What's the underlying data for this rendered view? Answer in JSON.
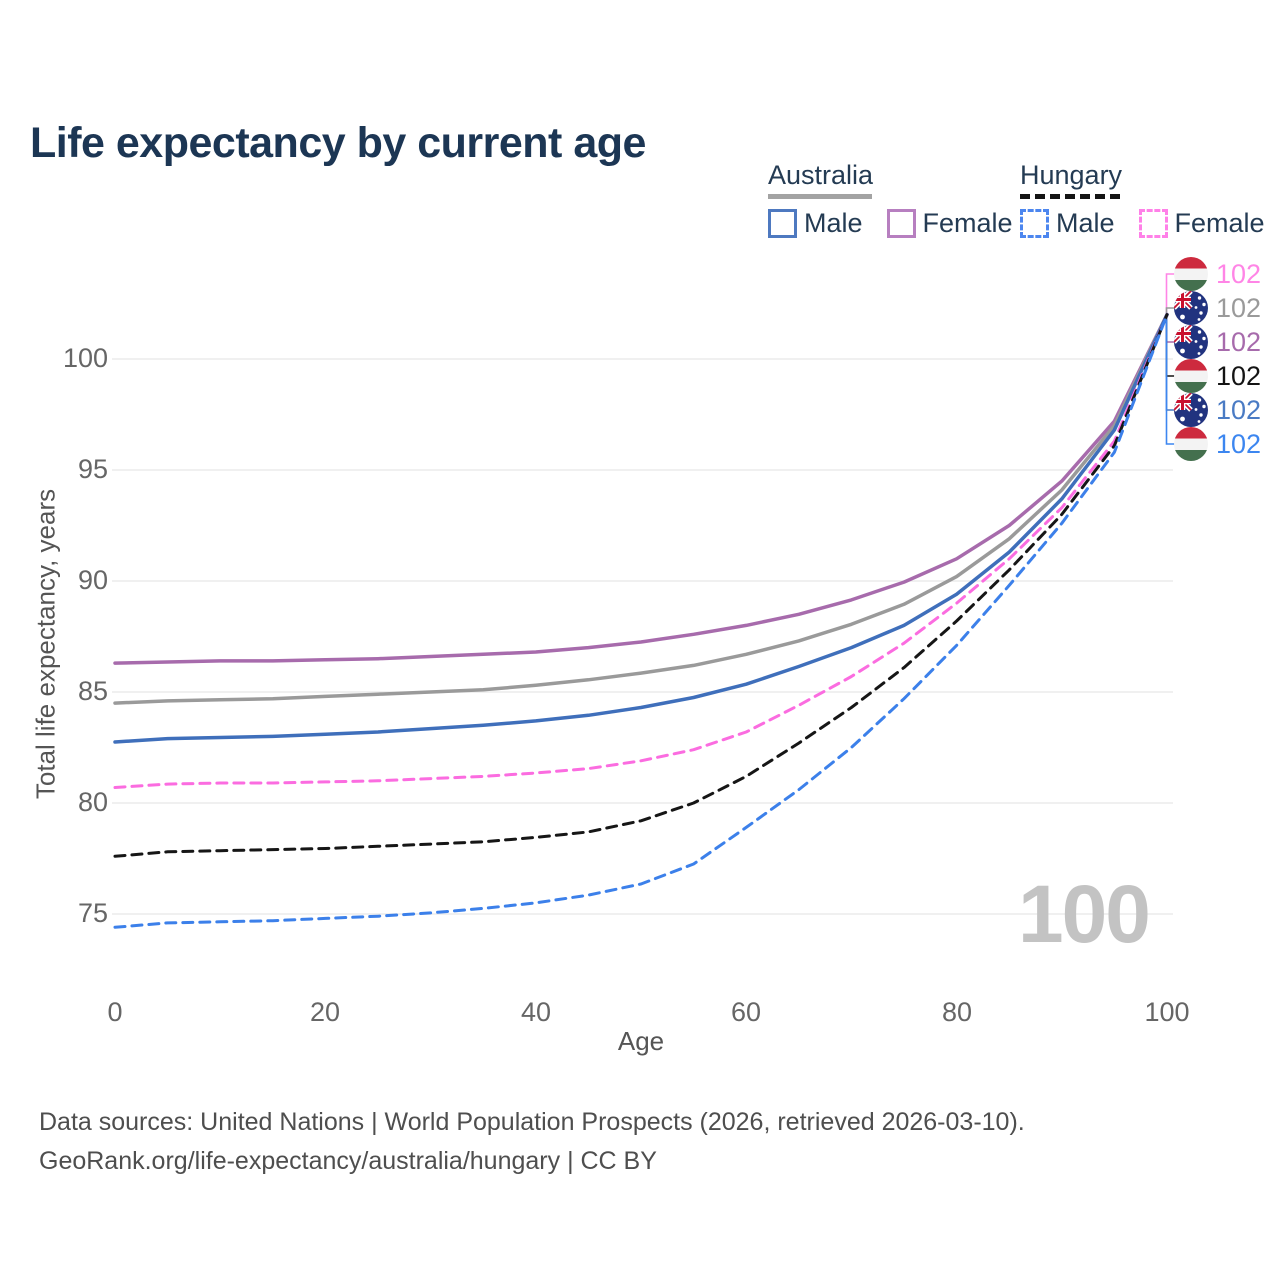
{
  "title": "Life expectancy by current age",
  "legend": {
    "groups": [
      {
        "label": "Australia",
        "underline_style": "solid",
        "underline_color": "#a3a3a3",
        "items": [
          {
            "label": "Male",
            "swatch_color": "#4e79c0",
            "swatch_style": "solid"
          },
          {
            "label": "Female",
            "swatch_color": "#b77fc0",
            "swatch_style": "solid"
          }
        ]
      },
      {
        "label": "Hungary",
        "underline_style": "dashed",
        "underline_color": "#141414",
        "items": [
          {
            "label": "Male",
            "swatch_color": "#4c86ef",
            "swatch_style": "dashed"
          },
          {
            "label": "Female",
            "swatch_color": "#ff80e8",
            "swatch_style": "dashed"
          }
        ]
      }
    ]
  },
  "chart_data": {
    "type": "line",
    "title": "Life expectancy by current age",
    "xlabel": "Age",
    "ylabel": "Total life expectancy, years",
    "x_ticks": [
      0,
      20,
      40,
      60,
      80,
      100
    ],
    "y_ticks": [
      75,
      80,
      85,
      90,
      95,
      100
    ],
    "xlim": [
      0,
      100
    ],
    "ylim": [
      73,
      103
    ],
    "grid": "horizontal",
    "grid_color": "#ebebeb",
    "legend_position": "top-right",
    "age_indicator": "100",
    "x": [
      0,
      5,
      10,
      15,
      20,
      25,
      30,
      35,
      40,
      45,
      50,
      55,
      60,
      65,
      70,
      75,
      80,
      85,
      90,
      95,
      100
    ],
    "series": [
      {
        "name": "Australia Female",
        "country": "Australia",
        "sex": "Female",
        "style": "solid",
        "color": "#a76bac",
        "values": [
          86.3,
          86.35,
          86.4,
          86.4,
          86.45,
          86.5,
          86.6,
          86.7,
          86.8,
          87.0,
          87.25,
          87.6,
          88.0,
          88.5,
          89.15,
          89.95,
          91.0,
          92.5,
          94.5,
          97.2,
          102
        ]
      },
      {
        "name": "Australia Both sexes",
        "country": "Australia",
        "sex": "Both",
        "style": "solid",
        "color": "#9a9a9a",
        "values": [
          84.5,
          84.6,
          84.65,
          84.7,
          84.8,
          84.9,
          85.0,
          85.1,
          85.3,
          85.55,
          85.85,
          86.2,
          86.7,
          87.3,
          88.05,
          88.95,
          90.2,
          91.9,
          94.1,
          97.0,
          102
        ]
      },
      {
        "name": "Australia Male",
        "country": "Australia",
        "sex": "Male",
        "style": "solid",
        "color": "#3f6fbb",
        "values": [
          82.75,
          82.9,
          82.95,
          83.0,
          83.1,
          83.2,
          83.35,
          83.5,
          83.7,
          83.95,
          84.3,
          84.75,
          85.35,
          86.15,
          87.0,
          88.0,
          89.4,
          91.3,
          93.7,
          96.8,
          102
        ]
      },
      {
        "name": "Hungary Female",
        "country": "Hungary",
        "sex": "Female",
        "style": "dashed",
        "color": "#fb6ce0",
        "values": [
          80.7,
          80.85,
          80.9,
          80.9,
          80.95,
          81.0,
          81.1,
          81.2,
          81.35,
          81.55,
          81.9,
          82.4,
          83.2,
          84.4,
          85.7,
          87.2,
          89.0,
          91.0,
          93.3,
          96.3,
          102
        ]
      },
      {
        "name": "Hungary Both sexes",
        "country": "Hungary",
        "sex": "Both",
        "style": "dashed",
        "color": "#161616",
        "values": [
          77.6,
          77.8,
          77.85,
          77.9,
          77.95,
          78.05,
          78.15,
          78.25,
          78.45,
          78.7,
          79.2,
          80.0,
          81.2,
          82.7,
          84.3,
          86.1,
          88.2,
          90.5,
          93.0,
          96.1,
          102
        ]
      },
      {
        "name": "Hungary Male",
        "country": "Hungary",
        "sex": "Male",
        "style": "dashed",
        "color": "#3c80ea",
        "values": [
          74.4,
          74.6,
          74.65,
          74.7,
          74.8,
          74.9,
          75.05,
          75.25,
          75.5,
          75.85,
          76.35,
          77.25,
          78.9,
          80.6,
          82.5,
          84.7,
          87.1,
          89.8,
          92.6,
          95.8,
          102
        ]
      }
    ],
    "endpoint_labels": [
      {
        "flag": "hu",
        "series": "Hungary Female",
        "value": "102",
        "color": "#ff85e6"
      },
      {
        "flag": "au",
        "series": "Australia Both sexes",
        "value": "102",
        "color": "#9a9a9a"
      },
      {
        "flag": "au",
        "series": "Australia Female",
        "value": "102",
        "color": "#a76bac"
      },
      {
        "flag": "hu",
        "series": "Hungary Both sexes",
        "value": "102",
        "color": "#141414"
      },
      {
        "flag": "au",
        "series": "Australia Male",
        "value": "102",
        "color": "#4a7bc4"
      },
      {
        "flag": "hu",
        "series": "Hungary Male",
        "value": "102",
        "color": "#3c86f0"
      }
    ]
  },
  "footer": {
    "line1": "Data sources: United Nations | World Population Prospects (2026, retrieved 2026-03-10).",
    "line2": "GeoRank.org/life-expectancy/australia/hungary | CC BY"
  }
}
